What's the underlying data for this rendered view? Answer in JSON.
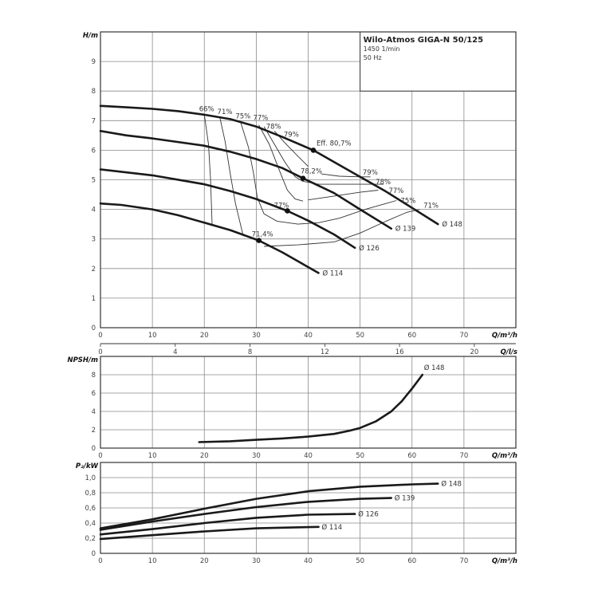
{
  "title_box": {
    "title": "Wilo-Atmos GIGA-N 50/125",
    "speed": "1450 1/min",
    "frequency": "50 Hz"
  },
  "chart_data": [
    {
      "type": "line",
      "name": "head",
      "ylabel": "H/m",
      "xlabel": "Q/m³/h",
      "xlim": [
        0,
        80
      ],
      "ylim": [
        0,
        10
      ],
      "xticks": [
        0,
        10,
        20,
        30,
        40,
        50,
        60,
        70
      ],
      "yticks": [
        0,
        1,
        2,
        3,
        4,
        5,
        6,
        7,
        8,
        9
      ],
      "secondary_x": {
        "label": "Q/l/s",
        "ticks": [
          0,
          4,
          8,
          12,
          16,
          20
        ]
      },
      "grid": true,
      "series": [
        {
          "name": "Ø 148",
          "points": [
            [
              0,
              7.5
            ],
            [
              5,
              7.45
            ],
            [
              10,
              7.4
            ],
            [
              15,
              7.32
            ],
            [
              20,
              7.2
            ],
            [
              25,
              7.05
            ],
            [
              30,
              6.8
            ],
            [
              35,
              6.45
            ],
            [
              41,
              6.0
            ],
            [
              45,
              5.6
            ],
            [
              50,
              5.1
            ],
            [
              55,
              4.6
            ],
            [
              60,
              4.05
            ],
            [
              65,
              3.5
            ]
          ]
        },
        {
          "name": "Ø 139",
          "points": [
            [
              0,
              6.65
            ],
            [
              5,
              6.5
            ],
            [
              10,
              6.4
            ],
            [
              20,
              6.15
            ],
            [
              25,
              5.95
            ],
            [
              30,
              5.7
            ],
            [
              35,
              5.4
            ],
            [
              39,
              5.05
            ],
            [
              45,
              4.55
            ],
            [
              50,
              4.0
            ],
            [
              56,
              3.35
            ]
          ]
        },
        {
          "name": "Ø 126",
          "points": [
            [
              0,
              5.35
            ],
            [
              5,
              5.25
            ],
            [
              10,
              5.15
            ],
            [
              20,
              4.85
            ],
            [
              25,
              4.62
            ],
            [
              30,
              4.35
            ],
            [
              36,
              3.95
            ],
            [
              40,
              3.62
            ],
            [
              45,
              3.15
            ],
            [
              49,
              2.7
            ]
          ]
        },
        {
          "name": "Ø 114",
          "points": [
            [
              0,
              4.2
            ],
            [
              4,
              4.15
            ],
            [
              10,
              4.0
            ],
            [
              15,
              3.8
            ],
            [
              20,
              3.55
            ],
            [
              25,
              3.3
            ],
            [
              30.5,
              2.95
            ],
            [
              35,
              2.55
            ],
            [
              42,
              1.85
            ]
          ]
        }
      ],
      "best_points": [
        {
          "label": "Eff. 80,7%",
          "q": 41,
          "h": 6.0
        },
        {
          "label": "78,2%",
          "q": 39,
          "h": 5.05
        },
        {
          "label": "77%",
          "q": 36,
          "h": 3.95
        },
        {
          "label": "71,4%",
          "q": 30.5,
          "h": 2.95
        }
      ],
      "efficiency_lines": [
        {
          "label": "66%",
          "points": [
            [
              20,
              7.2
            ],
            [
              20.8,
              6.2
            ],
            [
              21.2,
              5.0
            ],
            [
              21.5,
              3.5
            ]
          ]
        },
        {
          "label": "71%",
          "points": [
            [
              23,
              7.1
            ],
            [
              24,
              6.3
            ],
            [
              25,
              5.2
            ],
            [
              26,
              4.2
            ],
            [
              27.5,
              3.1
            ]
          ]
        },
        {
          "label": "75%",
          "points": [
            [
              27,
              6.95
            ],
            [
              28.5,
              6.1
            ],
            [
              29.5,
              5.2
            ],
            [
              30.2,
              4.4
            ],
            [
              31.5,
              3.85
            ],
            [
              34,
              3.6
            ],
            [
              38,
              3.5
            ],
            [
              42,
              3.55
            ],
            [
              46,
              3.7
            ],
            [
              51,
              4.0
            ],
            [
              57,
              4.3
            ]
          ]
        },
        {
          "label": "77%",
          "points": [
            [
              30.5,
              6.85
            ],
            [
              32.5,
              6.2
            ],
            [
              34.5,
              5.3
            ],
            [
              36,
              4.65
            ],
            [
              37.5,
              4.35
            ],
            [
              39,
              4.28
            ]
          ]
        },
        {
          "label": "77%",
          "points": [
            [
              40,
              4.32
            ],
            [
              45,
              4.45
            ],
            [
              50,
              4.58
            ],
            [
              53.5,
              4.65
            ]
          ]
        },
        {
          "label": "78%",
          "points": [
            [
              31.5,
              6.8
            ],
            [
              33.5,
              6.2
            ],
            [
              35.5,
              5.6
            ],
            [
              37.5,
              5.1
            ],
            [
              39,
              4.95
            ],
            [
              42,
              4.85
            ],
            [
              49,
              4.85
            ],
            [
              54.5,
              4.85
            ]
          ]
        },
        {
          "label": "79%",
          "points": [
            [
              33.5,
              6.65
            ],
            [
              35.5,
              6.25
            ],
            [
              38,
              5.8
            ],
            [
              40,
              5.45
            ]
          ]
        },
        {
          "label": "79%",
          "points": [
            [
              42.5,
              5.2
            ],
            [
              46,
              5.12
            ],
            [
              50,
              5.1
            ],
            [
              52,
              5.1
            ]
          ]
        },
        {
          "label": "71%",
          "points": [
            [
              31.5,
              2.75
            ],
            [
              38,
              2.8
            ],
            [
              45,
              2.9
            ],
            [
              50,
              3.2
            ],
            [
              55,
              3.6
            ],
            [
              59,
              3.9
            ],
            [
              61.5,
              4.0
            ]
          ]
        }
      ],
      "efficiency_labels_top": [
        "66%",
        "71%",
        "75%",
        "77%",
        "78%",
        "79%"
      ],
      "efficiency_labels_right": [
        "79%",
        "78%",
        "77%",
        "75%",
        "71%"
      ]
    },
    {
      "type": "line",
      "name": "npsh",
      "ylabel": "NPSH/m",
      "xlabel": "Q/m³/h",
      "xlim": [
        0,
        80
      ],
      "ylim": [
        0,
        10
      ],
      "xticks": [
        0,
        10,
        20,
        30,
        40,
        50,
        60,
        70
      ],
      "yticks": [
        0,
        2,
        4,
        6,
        8
      ],
      "grid": true,
      "series": [
        {
          "name": "Ø 148",
          "points": [
            [
              19,
              0.65
            ],
            [
              25,
              0.75
            ],
            [
              30,
              0.9
            ],
            [
              35,
              1.05
            ],
            [
              40,
              1.25
            ],
            [
              45,
              1.55
            ],
            [
              48,
              1.9
            ],
            [
              50,
              2.2
            ],
            [
              53,
              2.9
            ],
            [
              56,
              4.0
            ],
            [
              58,
              5.1
            ],
            [
              60,
              6.5
            ],
            [
              62,
              8.0
            ]
          ]
        }
      ]
    },
    {
      "type": "line",
      "name": "power",
      "ylabel": "P₂/kW",
      "xlabel": "Q/m³/h",
      "xlim": [
        0,
        80
      ],
      "ylim": [
        0,
        1.2
      ],
      "xticks": [
        0,
        10,
        20,
        30,
        40,
        50,
        60,
        70
      ],
      "yticks": [
        "0",
        "0,2",
        "0,4",
        "0,6",
        "0,8",
        "1,0"
      ],
      "grid": true,
      "series": [
        {
          "name": "Ø 148",
          "points": [
            [
              0,
              0.33
            ],
            [
              10,
              0.45
            ],
            [
              20,
              0.59
            ],
            [
              30,
              0.72
            ],
            [
              40,
              0.82
            ],
            [
              50,
              0.88
            ],
            [
              60,
              0.91
            ],
            [
              65,
              0.92
            ]
          ]
        },
        {
          "name": "Ø 139",
          "points": [
            [
              0,
              0.31
            ],
            [
              10,
              0.42
            ],
            [
              20,
              0.52
            ],
            [
              30,
              0.61
            ],
            [
              40,
              0.68
            ],
            [
              50,
              0.72
            ],
            [
              56,
              0.73
            ]
          ]
        },
        {
          "name": "Ø 126",
          "points": [
            [
              0,
              0.25
            ],
            [
              10,
              0.32
            ],
            [
              20,
              0.4
            ],
            [
              30,
              0.47
            ],
            [
              40,
              0.51
            ],
            [
              49,
              0.52
            ]
          ]
        },
        {
          "name": "Ø 114",
          "points": [
            [
              0,
              0.19
            ],
            [
              10,
              0.24
            ],
            [
              20,
              0.29
            ],
            [
              30,
              0.33
            ],
            [
              42,
              0.35
            ]
          ]
        }
      ]
    }
  ]
}
